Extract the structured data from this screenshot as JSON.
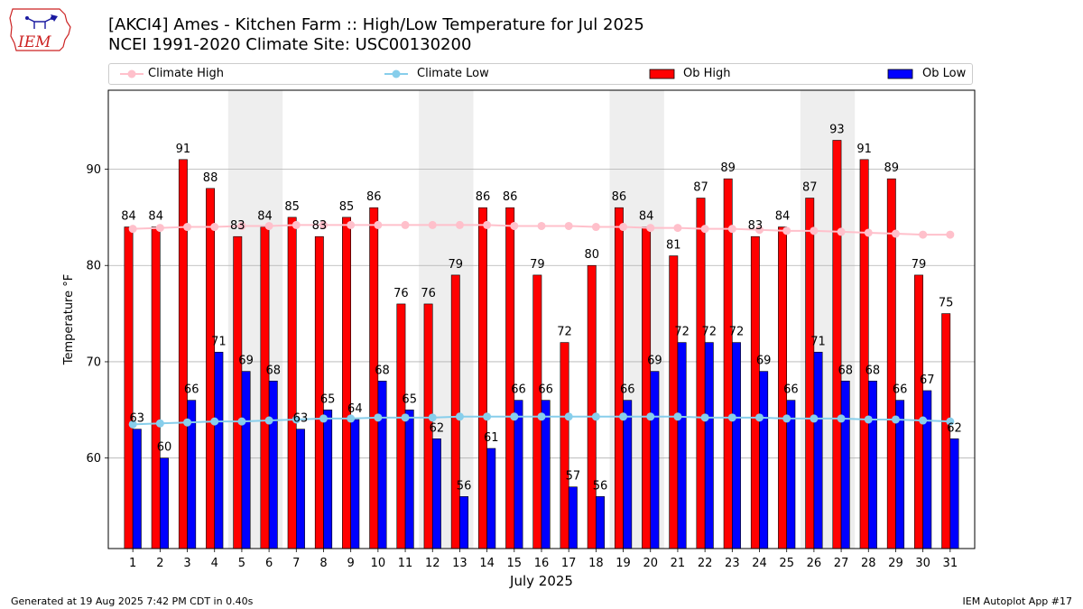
{
  "header": {
    "title_line1": "[AKCI4] Ames - Kitchen Farm :: High/Low Temperature for Jul 2025",
    "title_line2": "NCEI 1991-2020 Climate Site: USC00130200",
    "logo_text": "IEM"
  },
  "footer": {
    "generated": "Generated at 19 Aug 2025 7:42 PM CDT in 0.40s",
    "app": "IEM Autoplot App #17"
  },
  "colors": {
    "ob_high": "#ff0000",
    "ob_low": "#0000ff",
    "climate_high": "#ffc0cb",
    "climate_low": "#87ceeb",
    "weekend_shade": "#eeeeee",
    "grid": "#b0b0b0"
  },
  "chart_data": {
    "type": "bar",
    "title": "[AKCI4] Ames - Kitchen Farm :: High/Low Temperature for Jul 2025",
    "subtitle": "NCEI 1991-2020 Climate Site: USC00130200",
    "xlabel": "July 2025",
    "ylabel": "Temperature °F",
    "ylim": [
      50.6,
      98.2
    ],
    "yticks": [
      60,
      70,
      80,
      90
    ],
    "grid": true,
    "legend_position": "top",
    "categories": [
      "1",
      "2",
      "3",
      "4",
      "5",
      "6",
      "7",
      "8",
      "9",
      "10",
      "11",
      "12",
      "13",
      "14",
      "15",
      "16",
      "17",
      "18",
      "19",
      "20",
      "21",
      "22",
      "23",
      "24",
      "25",
      "26",
      "27",
      "28",
      "29",
      "30",
      "31"
    ],
    "weekend_spans": [
      [
        5,
        6
      ],
      [
        12,
        13
      ],
      [
        19,
        20
      ],
      [
        26,
        27
      ]
    ],
    "series": [
      {
        "name": "Climate High",
        "kind": "line",
        "values": [
          83.8,
          83.9,
          84.0,
          84.0,
          84.1,
          84.1,
          84.2,
          84.2,
          84.2,
          84.2,
          84.2,
          84.2,
          84.2,
          84.2,
          84.1,
          84.1,
          84.1,
          84.0,
          84.0,
          83.9,
          83.9,
          83.8,
          83.8,
          83.7,
          83.6,
          83.6,
          83.5,
          83.4,
          83.3,
          83.2,
          83.2
        ]
      },
      {
        "name": "Climate Low",
        "kind": "line",
        "values": [
          63.5,
          63.6,
          63.7,
          63.8,
          63.8,
          63.9,
          64.0,
          64.1,
          64.1,
          64.2,
          64.2,
          64.2,
          64.3,
          64.3,
          64.3,
          64.3,
          64.3,
          64.3,
          64.3,
          64.3,
          64.3,
          64.2,
          64.2,
          64.2,
          64.1,
          64.1,
          64.1,
          64.0,
          64.0,
          63.9,
          63.8
        ]
      },
      {
        "name": "Ob High",
        "kind": "bar",
        "values": [
          84,
          84,
          91,
          88,
          83,
          84,
          85,
          83,
          85,
          86,
          76,
          76,
          79,
          86,
          86,
          79,
          72,
          80,
          86,
          84,
          81,
          87,
          89,
          83,
          84,
          87,
          93,
          91,
          89,
          79,
          75
        ]
      },
      {
        "name": "Ob Low",
        "kind": "bar",
        "values": [
          63,
          60,
          66,
          71,
          69,
          68,
          63,
          65,
          64,
          68,
          65,
          62,
          56,
          61,
          66,
          66,
          57,
          56,
          66,
          69,
          72,
          72,
          72,
          69,
          66,
          71,
          68,
          68,
          66,
          67,
          62
        ]
      }
    ]
  }
}
